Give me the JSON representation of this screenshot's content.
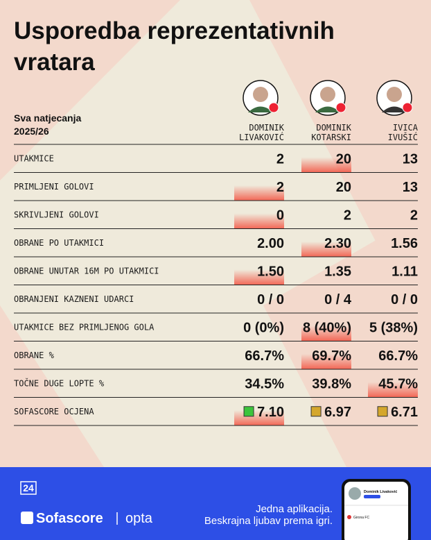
{
  "header": {
    "title_lines": [
      "Usporedba reprezentativnih",
      "vratara"
    ],
    "subtitle_lines": [
      "Sva natjecanja",
      "2025/26"
    ]
  },
  "players": [
    {
      "name_lines": [
        "DOMINIK",
        "LIVAKOVIĆ"
      ]
    },
    {
      "name_lines": [
        "DOMINIK",
        "KOTARSKI"
      ]
    },
    {
      "name_lines": [
        "IVICA",
        "IVUŠIĆ"
      ]
    }
  ],
  "table": {
    "highlight_color": "#f2604f",
    "rows": [
      {
        "label": "UTAKMICE",
        "values": [
          "2",
          "20",
          "13"
        ],
        "highlight": 1
      },
      {
        "label": "PRIMLJENI GOLOVI",
        "values": [
          "2",
          "20",
          "13"
        ],
        "highlight": 0
      },
      {
        "label": "SKRIVLJENI GOLOVI",
        "values": [
          "0",
          "2",
          "2"
        ],
        "highlight": 0
      },
      {
        "label": "OBRANE PO UTAKMICI",
        "values": [
          "2.00",
          "2.30",
          "1.56"
        ],
        "highlight": 1
      },
      {
        "label": "OBRANE UNUTAR 16M PO UTAKMICI",
        "values": [
          "1.50",
          "1.35",
          "1.11"
        ],
        "highlight": 0
      },
      {
        "label": "OBRANJENI KAZNENI UDARCI",
        "values": [
          "0 / 0",
          "0 / 4",
          "0 / 0"
        ]
      },
      {
        "label": "UTAKMICE BEZ PRIMLJENOG GOLA",
        "values": [
          "0 (0%)",
          "8 (40%)",
          "5 (38%)"
        ],
        "highlight": 1
      },
      {
        "label": "OBRANE %",
        "values": [
          "66.7%",
          "69.7%",
          "66.7%"
        ],
        "highlight": 1
      },
      {
        "label": "TOČNE DUGE LOPTE %",
        "values": [
          "34.5%",
          "39.8%",
          "45.7%"
        ],
        "highlight": 2
      },
      {
        "label": "SOFASCORE OCJENA",
        "values": [
          "7.10",
          "6.97",
          "6.71"
        ],
        "highlight": 0,
        "marker_colors": [
          "#3cc43c",
          "#d4a72c",
          "#d4a72c"
        ]
      }
    ]
  },
  "footer": {
    "logo_24": "24",
    "brand": "Sofascore",
    "partner": "opta",
    "tagline_lines": [
      "Jedna aplikacija.",
      "Beskrajna ljubav prema igri."
    ],
    "phone_name": "Dominik Livaković",
    "phone_club": "Girona FC"
  }
}
